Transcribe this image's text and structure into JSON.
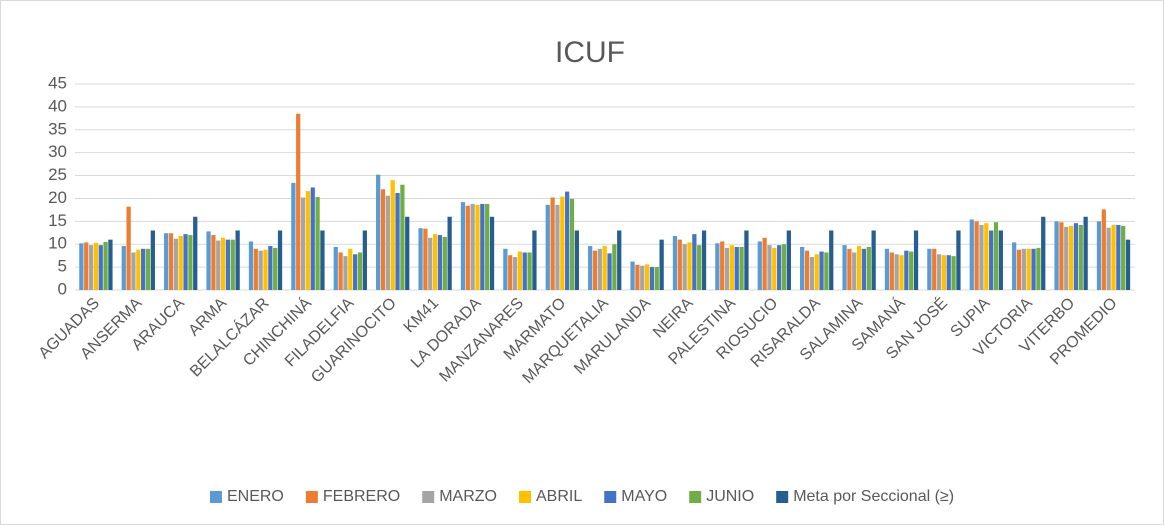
{
  "chart_data": {
    "type": "bar",
    "title": "ICUF",
    "categories": [
      "AGUADAS",
      "ANSERMA",
      "ARAUCA",
      "ARMA",
      "BELALCÁZAR",
      "CHINCHINÁ",
      "FILADELFIA",
      "GUARINOCITO",
      "KM41",
      "LA DORADA",
      "MANZANARES",
      "MARMATO",
      "MARQUETALIA",
      "MARULANDA",
      "NEIRA",
      "PALESTINA",
      "RIOSUCIO",
      "RISARALDA",
      "SALAMINA",
      "SAMANÁ",
      "SAN JOSÉ",
      "SUPIA",
      "VICTORIA",
      "VITERBO",
      "PROMEDIO"
    ],
    "series": [
      {
        "name": "ENERO",
        "color": "#5b9bd5",
        "values": [
          10.2,
          9.6,
          12.4,
          12.8,
          10.6,
          23.4,
          9.4,
          25.2,
          13.5,
          19.2,
          9,
          18.6,
          9.6,
          6.2,
          11.8,
          10.2,
          10.6,
          9.4,
          9.8,
          9,
          9,
          15.4,
          10.4,
          15,
          15
        ]
      },
      {
        "name": "FEBRERO",
        "color": "#ed7d31",
        "values": [
          10.4,
          18.2,
          12.4,
          12,
          9,
          38.5,
          8.2,
          22,
          13.4,
          18.4,
          7.6,
          20.2,
          8.6,
          5.5,
          11,
          10.6,
          11.4,
          8.6,
          9,
          8.2,
          9,
          15,
          8.8,
          14.8,
          17.6
        ]
      },
      {
        "name": "MARZO",
        "color": "#a5a5a5",
        "values": [
          9.8,
          8.2,
          11.2,
          10.8,
          8.6,
          20.2,
          7.4,
          20.6,
          11.4,
          18.8,
          7.2,
          18.6,
          9,
          5.3,
          10,
          9.2,
          9.8,
          7.2,
          8.2,
          7.8,
          7.8,
          14.2,
          9,
          13.8,
          13.6
        ]
      },
      {
        "name": "ABRIL",
        "color": "#ffc000",
        "values": [
          10.3,
          8.8,
          11.8,
          11.4,
          8.8,
          21.6,
          9,
          24,
          12.2,
          18.6,
          8.4,
          20.4,
          9.6,
          5.6,
          10.4,
          9.8,
          9.2,
          7.8,
          9.6,
          7.6,
          7.6,
          14.6,
          9,
          14,
          14.2
        ]
      },
      {
        "name": "MAYO",
        "color": "#4472c4",
        "values": [
          9.8,
          9,
          12.2,
          11,
          9.6,
          22.4,
          7.8,
          21.2,
          12,
          18.8,
          8.2,
          21.5,
          8,
          5,
          12.2,
          9.4,
          9.8,
          8.4,
          9,
          8.6,
          7.6,
          13,
          9,
          14.6,
          14.2
        ]
      },
      {
        "name": "JUNIO",
        "color": "#70ad47",
        "values": [
          10.5,
          9,
          12,
          11,
          9.2,
          20.3,
          8.2,
          23,
          11.6,
          18.8,
          8.2,
          19.9,
          10,
          5,
          9.8,
          9.4,
          10,
          8.2,
          9.4,
          8.4,
          7.4,
          14.8,
          9.2,
          14.2,
          14
        ]
      },
      {
        "name": "Meta por Seccional (≥)",
        "color": "#255e91",
        "values": [
          11,
          13,
          16,
          13,
          13,
          13,
          13,
          16,
          16,
          16,
          13,
          13,
          13,
          11,
          13,
          13,
          13,
          13,
          13,
          13,
          13,
          13,
          16,
          16,
          11
        ]
      }
    ],
    "ylim": [
      0,
      45
    ],
    "yticks": [
      0,
      5,
      10,
      15,
      20,
      25,
      30,
      35,
      40,
      45
    ],
    "grid": true,
    "legend": "bottom"
  }
}
